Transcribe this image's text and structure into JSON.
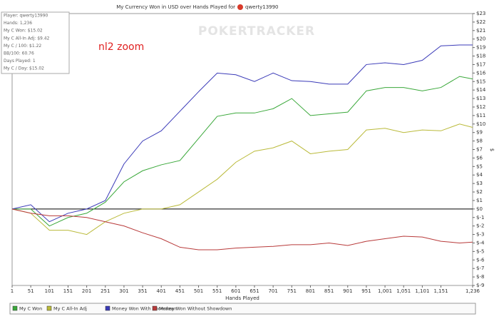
{
  "chart_data": {
    "type": "line",
    "title": "My Currency Won in USD over Hands Played for",
    "title_player": "qwerty13990",
    "watermark": "POKERTRACKER",
    "annotation": "nl2 zoom",
    "info": [
      "Player: qwerty13990",
      "Hands: 1,236",
      "My C Won: $15.02",
      "My C All-In Adj: $9.42",
      "My C / 100: $1.22",
      "BB/100: 60.76",
      "Days Played: 1",
      "My C / Day: $15.02"
    ],
    "xlabel": "Hands Played",
    "ylabel": "$",
    "x": [
      1,
      51,
      101,
      151,
      201,
      251,
      301,
      351,
      401,
      451,
      501,
      551,
      601,
      651,
      701,
      751,
      801,
      851,
      901,
      951,
      1001,
      1051,
      1101,
      1151,
      1201,
      1236
    ],
    "series": [
      {
        "name": "My C Won",
        "color": "#3aa83a",
        "values": [
          0,
          0,
          -2,
          -1,
          -0.5,
          0.8,
          3.2,
          4.5,
          5.2,
          5.7,
          8.3,
          10.9,
          11.3,
          11.3,
          11.8,
          13,
          11,
          11.2,
          11.4,
          13.9,
          14.3,
          14.3,
          13.9,
          14.3,
          15.6,
          15.3
        ]
      },
      {
        "name": "My C All-In Adj",
        "color": "#baba3a",
        "values": [
          0,
          -0.5,
          -2.5,
          -2.5,
          -3,
          -1.5,
          -0.5,
          0,
          0,
          0.5,
          2,
          3.5,
          5.5,
          6.8,
          7.2,
          8,
          6.5,
          6.8,
          7,
          9.3,
          9.5,
          9,
          9.3,
          9.2,
          10,
          9.6
        ]
      },
      {
        "name": "Money Won With Showdown",
        "color": "#3a3ab8",
        "values": [
          0,
          0.5,
          -1.5,
          -0.5,
          0,
          1,
          5.3,
          8,
          9.2,
          11.5,
          13.8,
          16,
          15.8,
          15,
          16,
          15.1,
          15,
          14.7,
          14.7,
          17,
          17.2,
          17,
          17.5,
          19.2,
          19.3,
          19.3
        ]
      },
      {
        "name": "Money Won Without Showdown",
        "color": "#b83a3a",
        "values": [
          0,
          -0.5,
          -0.8,
          -0.8,
          -1,
          -1.5,
          -2,
          -2.8,
          -3.5,
          -4.5,
          -4.8,
          -4.8,
          -4.6,
          -4.5,
          -4.4,
          -4.2,
          -4.2,
          -4,
          -4.3,
          -3.8,
          -3.5,
          -3.2,
          -3.3,
          -3.8,
          -4,
          -3.9
        ]
      }
    ],
    "xlim": [
      1,
      1236
    ],
    "xticks": [
      1,
      51,
      101,
      151,
      201,
      251,
      301,
      351,
      401,
      451,
      501,
      551,
      601,
      651,
      701,
      751,
      801,
      851,
      901,
      951,
      {
        "value": 1001,
        "label": "1,001"
      },
      {
        "value": 1051,
        "label": "1,051"
      },
      {
        "value": 1101,
        "label": "1,101"
      },
      {
        "value": 1151,
        "label": "1,151"
      },
      {
        "value": 1236,
        "label": "1,236"
      }
    ],
    "ylim": [
      -9,
      23
    ],
    "yticks": [
      {
        "value": -9,
        "label": "$-9"
      },
      {
        "value": -8,
        "label": "$-8"
      },
      {
        "value": -7,
        "label": "$-7"
      },
      {
        "value": -6,
        "label": "$-6"
      },
      {
        "value": -5,
        "label": "$-5"
      },
      {
        "value": -4,
        "label": "$-4"
      },
      {
        "value": -3,
        "label": "$-3"
      },
      {
        "value": -2,
        "label": "$-2"
      },
      {
        "value": -1,
        "label": "$-1"
      },
      {
        "value": 0,
        "label": "$0"
      },
      {
        "value": 1,
        "label": "$1"
      },
      {
        "value": 2,
        "label": "$2"
      },
      {
        "value": 3,
        "label": "$3"
      },
      {
        "value": 4,
        "label": "$4"
      },
      {
        "value": 5,
        "label": "$5"
      },
      {
        "value": 6,
        "label": "$6"
      },
      {
        "value": 7,
        "label": "$7"
      },
      {
        "value": 8,
        "label": "$8"
      },
      {
        "value": 9,
        "label": "$9"
      },
      {
        "value": 10,
        "label": "$10"
      },
      {
        "value": 11,
        "label": "$11"
      },
      {
        "value": 12,
        "label": "$12"
      },
      {
        "value": 13,
        "label": "$13"
      },
      {
        "value": 14,
        "label": "$14"
      },
      {
        "value": 15,
        "label": "$15"
      },
      {
        "value": 16,
        "label": "$16"
      },
      {
        "value": 17,
        "label": "$17"
      },
      {
        "value": 18,
        "label": "$18"
      },
      {
        "value": 19,
        "label": "$19"
      },
      {
        "value": 20,
        "label": "$20"
      },
      {
        "value": 21,
        "label": "$21"
      },
      {
        "value": 22,
        "label": "$22"
      },
      {
        "value": 23,
        "label": "$23"
      }
    ],
    "grid": false
  }
}
